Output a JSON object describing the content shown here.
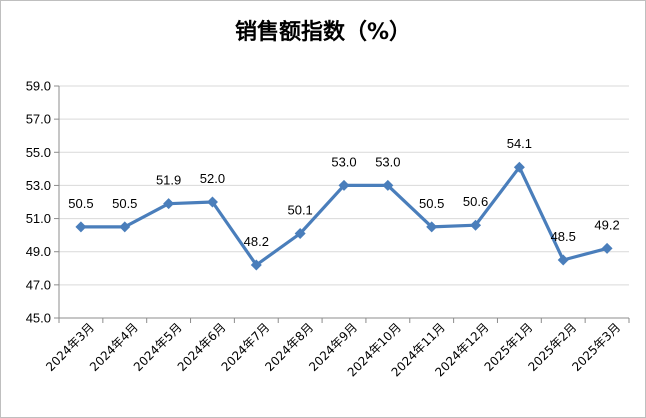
{
  "chart_data": {
    "type": "line",
    "title": "销售额指数（%）",
    "xlabel": "",
    "ylabel": "",
    "categories": [
      "2024年3月",
      "2024年4月",
      "2024年5月",
      "2024年6月",
      "2024年7月",
      "2024年8月",
      "2024年9月",
      "2024年10月",
      "2024年11月",
      "2024年12月",
      "2025年1月",
      "2025年2月",
      "2025年3月"
    ],
    "values": [
      50.5,
      50.5,
      51.9,
      52.0,
      48.2,
      50.1,
      53.0,
      53.0,
      50.5,
      50.6,
      54.1,
      48.5,
      49.2
    ],
    "value_labels": [
      "50.5",
      "50.5",
      "51.9",
      "52.0",
      "48.2",
      "50.1",
      "53.0",
      "53.0",
      "50.5",
      "50.6",
      "54.1",
      "48.5",
      "49.2"
    ],
    "ylim": [
      45.0,
      59.0
    ],
    "yticks": [
      45.0,
      47.0,
      49.0,
      51.0,
      53.0,
      55.0,
      57.0,
      59.0
    ],
    "ytick_labels": [
      "45.0",
      "47.0",
      "49.0",
      "51.0",
      "53.0",
      "55.0",
      "57.0",
      "59.0"
    ],
    "grid": true,
    "legend": "none",
    "line_color": "#4a7ebb",
    "marker": "diamond"
  }
}
